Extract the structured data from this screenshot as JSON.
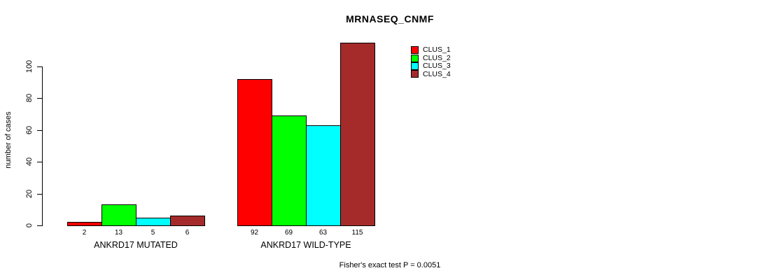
{
  "chart_data": {
    "type": "bar",
    "title": "MRNASEQ_CNMF",
    "ylabel": "number of cases",
    "footnote": "Fisher's exact test P = 0.0051",
    "yticks": [
      0,
      20,
      40,
      60,
      80,
      100
    ],
    "ylim": [
      0,
      100
    ],
    "grid": false,
    "legend_position": "top-right-inside",
    "categories": [
      "ANKRD17 MUTATED",
      "ANKRD17 WILD-TYPE"
    ],
    "series": [
      {
        "name": "CLUS_1",
        "color": "#ff0000",
        "values": [
          2,
          92
        ]
      },
      {
        "name": "CLUS_2",
        "color": "#00ff00",
        "values": [
          13,
          69
        ]
      },
      {
        "name": "CLUS_3",
        "color": "#00ffff",
        "values": [
          5,
          63
        ]
      },
      {
        "name": "CLUS_4",
        "color": "#a52a2a",
        "values": [
          6,
          115
        ]
      }
    ],
    "bar_value_labels": [
      [
        2,
        13,
        5,
        6
      ],
      [
        92,
        69,
        63,
        115
      ]
    ]
  }
}
